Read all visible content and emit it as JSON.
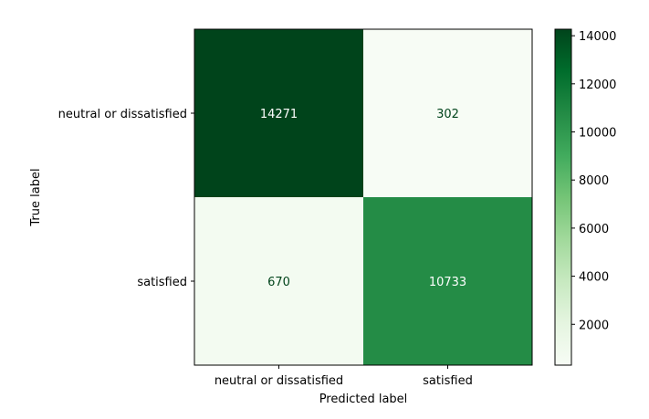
{
  "chart_data": {
    "type": "heatmap",
    "title": "",
    "xlabel": "Predicted label",
    "ylabel": "True label",
    "x_categories": [
      "neutral or dissatisfied",
      "satisfied"
    ],
    "y_categories": [
      "neutral or dissatisfied",
      "satisfied"
    ],
    "values": [
      [
        14271,
        302
      ],
      [
        670,
        10733
      ]
    ],
    "colormap": "Greens",
    "colorbar": {
      "range": [
        302,
        14271
      ],
      "ticks": [
        2000,
        4000,
        6000,
        8000,
        10000,
        12000,
        14000
      ],
      "tick_labels": [
        "2000",
        "4000",
        "6000",
        "8000",
        "10000",
        "12000",
        "14000"
      ]
    },
    "grid": false
  }
}
